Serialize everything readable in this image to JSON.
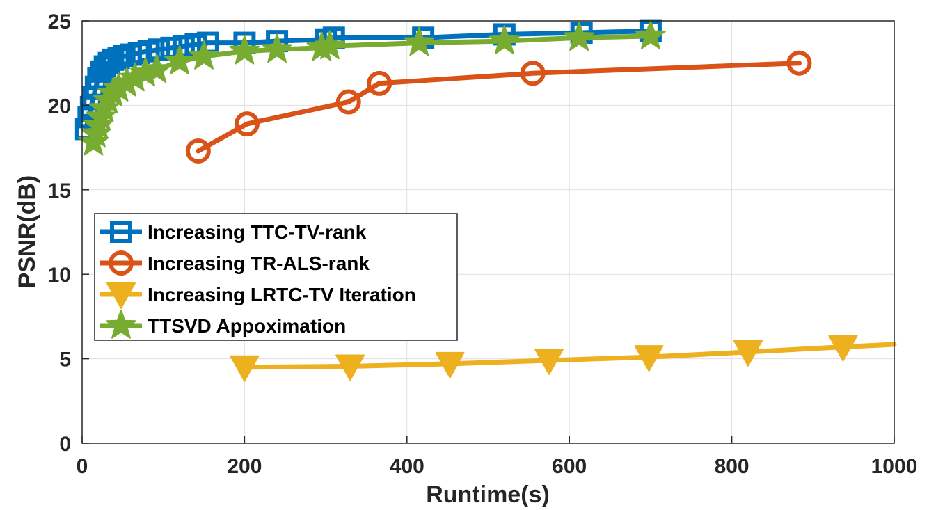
{
  "chart_data": {
    "type": "line",
    "title": "",
    "xlabel": "Runtime(s)",
    "ylabel": "PSNR(dB)",
    "xlim": [
      0,
      1000
    ],
    "ylim": [
      0,
      25
    ],
    "xticks": [
      "0",
      "200",
      "400",
      "600",
      "800",
      "1000"
    ],
    "yticks": [
      "0",
      "5",
      "10",
      "15",
      "20",
      "25"
    ],
    "grid": true,
    "legend_position": "center-left",
    "series": [
      {
        "name": "Increasing TTC-TV-rank",
        "color": "#0072BD",
        "marker": "square",
        "x": [
          5,
          8,
          11,
          14,
          17,
          20,
          24,
          28,
          33,
          38,
          45,
          52,
          60,
          70,
          82,
          95,
          110,
          125,
          140,
          155,
          200,
          240,
          300,
          310,
          420,
          520,
          615,
          700
        ],
        "y": [
          18.6,
          19.3,
          19.9,
          20.5,
          21.1,
          21.6,
          22.0,
          22.3,
          22.5,
          22.7,
          22.8,
          22.9,
          23.0,
          23.1,
          23.2,
          23.3,
          23.4,
          23.5,
          23.6,
          23.7,
          23.7,
          23.8,
          23.9,
          24.0,
          24.0,
          24.2,
          24.3,
          24.4
        ]
      },
      {
        "name": "Increasing TR-ALS-rank",
        "color": "#D95319",
        "marker": "circle",
        "x": [
          143,
          203,
          328,
          366,
          555,
          883
        ],
        "y": [
          17.3,
          18.9,
          20.2,
          21.3,
          21.9,
          22.5
        ]
      },
      {
        "name": "Increasing LRTC-TV Iteration",
        "color": "#EDB120",
        "marker": "triangle-down",
        "x": [
          200,
          330,
          453,
          575,
          698,
          820,
          937,
          1000
        ],
        "y": [
          4.5,
          4.55,
          4.7,
          4.9,
          5.1,
          5.4,
          5.7,
          5.85
        ]
      },
      {
        "name": "TTSVD Appoximation",
        "color": "#77AC30",
        "marker": "star",
        "x": [
          14,
          17,
          20,
          23,
          27,
          32,
          38,
          45,
          55,
          65,
          78,
          92,
          120,
          150,
          200,
          240,
          295,
          305,
          415,
          520,
          612,
          700
        ],
        "y": [
          17.8,
          18.3,
          18.8,
          19.3,
          19.8,
          20.3,
          20.7,
          21.0,
          21.3,
          21.6,
          21.9,
          22.1,
          22.6,
          22.9,
          23.2,
          23.3,
          23.4,
          23.5,
          23.7,
          23.8,
          24.0,
          24.1
        ]
      }
    ]
  }
}
